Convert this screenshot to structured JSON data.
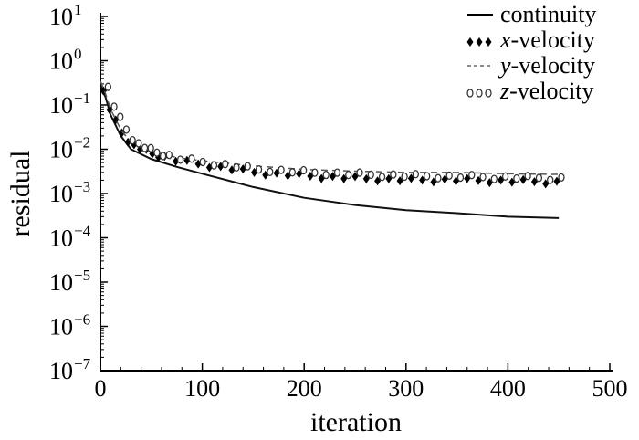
{
  "chart_data": {
    "type": "line",
    "xlabel": "iteration",
    "ylabel": "residual",
    "xlim": [
      0,
      500
    ],
    "ylim": [
      1e-07,
      10
    ],
    "yscale": "log",
    "grid": false,
    "legend_placement": "top-right",
    "x_ticks": [
      "0",
      "100",
      "200",
      "300",
      "400",
      "500"
    ],
    "y_ticks": [
      {
        "base": "10",
        "exp": "1"
      },
      {
        "base": "10",
        "exp": "0"
      },
      {
        "base": "10",
        "exp": "−1"
      },
      {
        "base": "10",
        "exp": "−2"
      },
      {
        "base": "10",
        "exp": "−3"
      },
      {
        "base": "10",
        "exp": "−4"
      },
      {
        "base": "10",
        "exp": "−5"
      },
      {
        "base": "10",
        "exp": "−6"
      },
      {
        "base": "10",
        "exp": "−7"
      }
    ],
    "series": [
      {
        "name": "continuity",
        "style": "solid",
        "x": [
          0,
          5,
          10,
          20,
          30,
          50,
          75,
          100,
          150,
          200,
          250,
          300,
          350,
          400,
          450
        ],
        "y": [
          0.3,
          0.15,
          0.06,
          0.02,
          0.01,
          0.006,
          0.004,
          0.0028,
          0.0014,
          0.0008,
          0.00055,
          0.00042,
          0.00036,
          0.0003,
          0.00028
        ]
      },
      {
        "name": "x-velocity",
        "prefix": "x",
        "style": "filled-diamonds",
        "x": [
          0,
          5,
          10,
          20,
          30,
          50,
          75,
          100,
          150,
          200,
          250,
          300,
          350,
          400,
          450
        ],
        "y": [
          0.3,
          0.15,
          0.07,
          0.025,
          0.013,
          0.008,
          0.0055,
          0.0045,
          0.003,
          0.0025,
          0.0022,
          0.002,
          0.002,
          0.0019,
          0.0018
        ]
      },
      {
        "name": "y-velocity",
        "prefix": "y",
        "style": "dashed",
        "x": [
          0,
          5,
          10,
          20,
          30,
          50,
          75,
          100,
          150,
          200,
          250,
          300,
          350,
          400,
          450
        ],
        "y": [
          0.35,
          0.18,
          0.08,
          0.028,
          0.014,
          0.009,
          0.0065,
          0.0055,
          0.0042,
          0.0035,
          0.0032,
          0.003,
          0.003,
          0.0028,
          0.0027
        ]
      },
      {
        "name": "z-velocity",
        "prefix": "z",
        "style": "open-circles",
        "x": [
          0,
          5,
          10,
          20,
          30,
          50,
          75,
          100,
          150,
          200,
          250,
          300,
          350,
          400,
          450
        ],
        "y": [
          0.33,
          0.2,
          0.08,
          0.03,
          0.014,
          0.0085,
          0.006,
          0.005,
          0.0035,
          0.003,
          0.0027,
          0.0025,
          0.0024,
          0.0023,
          0.0022
        ]
      }
    ],
    "legend": [
      {
        "prefix": "",
        "label": "continuity"
      },
      {
        "prefix": "x",
        "label": "-velocity"
      },
      {
        "prefix": "y",
        "label": "-velocity"
      },
      {
        "prefix": "z",
        "label": "-velocity"
      }
    ]
  }
}
